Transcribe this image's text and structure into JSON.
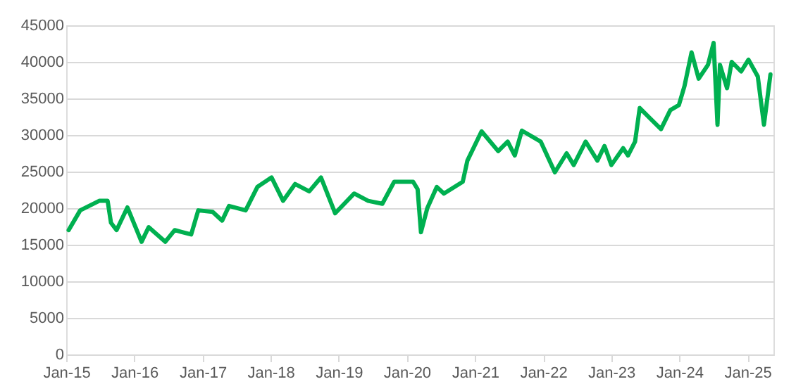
{
  "chart_data": {
    "type": "line",
    "x": [
      "2015-01-14",
      "2015-03-17",
      "2015-06-27",
      "2015-08-11",
      "2015-08-29",
      "2015-09-28",
      "2015-11-25",
      "2016-02-09",
      "2016-03-18",
      "2016-06-15",
      "2016-08-05",
      "2016-11-01",
      "2016-12-09",
      "2017-02-24",
      "2017-04-16",
      "2017-05-23",
      "2017-08-20",
      "2017-10-22",
      "2018-01-06",
      "2018-03-09",
      "2018-05-12",
      "2018-07-27",
      "2018-09-28",
      "2018-12-13",
      "2019-03-25",
      "2019-06-08",
      "2019-08-23",
      "2019-10-25",
      "2020-02-04",
      "2020-02-28",
      "2020-03-17",
      "2020-04-20",
      "2020-06-10",
      "2020-07-18",
      "2020-10-27",
      "2020-11-21",
      "2021-02-05",
      "2021-05-05",
      "2021-06-25",
      "2021-08-02",
      "2021-09-09",
      "2021-12-19",
      "2022-03-05",
      "2022-05-07",
      "2022-06-14",
      "2022-08-17",
      "2022-10-19",
      "2022-11-26",
      "2023-01-02",
      "2023-03-06",
      "2023-04-01",
      "2023-05-09",
      "2023-06-03",
      "2023-07-24",
      "2023-09-25",
      "2023-11-14",
      "2023-12-30",
      "2024-01-29",
      "2024-03-07",
      "2024-04-14",
      "2024-06-03",
      "2024-07-03",
      "2024-07-24",
      "2024-08-06",
      "2024-09-13",
      "2024-10-08",
      "2024-11-28",
      "2025-01-06",
      "2025-02-25",
      "2025-03-30",
      "2025-05-04"
    ],
    "series": [
      {
        "color": "#00b050",
        "values": [
          17000,
          19700,
          21000,
          21000,
          18000,
          17000,
          20100,
          15400,
          17400,
          15400,
          17000,
          16400,
          19700,
          19500,
          18300,
          20300,
          19700,
          22900,
          24200,
          21000,
          23300,
          22300,
          24200,
          19300,
          22000,
          21000,
          20600,
          23600,
          23600,
          22600,
          16700,
          20000,
          22900,
          22000,
          23600,
          26500,
          30500,
          27800,
          29100,
          27200,
          30600,
          29100,
          24900,
          27500,
          25900,
          29100,
          26500,
          28500,
          25900,
          28200,
          27200,
          29100,
          33700,
          32400,
          30800,
          33400,
          34100,
          36700,
          41300,
          37700,
          39600,
          42600,
          31400,
          39600,
          36400,
          40000,
          38700,
          40300,
          38000,
          31400,
          38300
        ]
      }
    ],
    "xlim": [
      "2015-01-01",
      "2025-05-20"
    ],
    "xticks": [
      {
        "value": "2015-01-01",
        "label": "Jan-15"
      },
      {
        "value": "2016-01-01",
        "label": "Jan-16"
      },
      {
        "value": "2017-01-01",
        "label": "Jan-17"
      },
      {
        "value": "2018-01-01",
        "label": "Jan-18"
      },
      {
        "value": "2019-01-01",
        "label": "Jan-19"
      },
      {
        "value": "2020-01-01",
        "label": "Jan-20"
      },
      {
        "value": "2021-01-01",
        "label": "Jan-21"
      },
      {
        "value": "2022-01-01",
        "label": "Jan-22"
      },
      {
        "value": "2023-01-01",
        "label": "Jan-23"
      },
      {
        "value": "2024-01-01",
        "label": "Jan-24"
      },
      {
        "value": "2025-01-01",
        "label": "Jan-25"
      }
    ],
    "ylim": [
      0,
      45000
    ],
    "yticks": [
      0,
      5000,
      10000,
      15000,
      20000,
      25000,
      30000,
      35000,
      40000,
      45000
    ],
    "grid": "y",
    "marker": "none",
    "line_style": "solid"
  }
}
